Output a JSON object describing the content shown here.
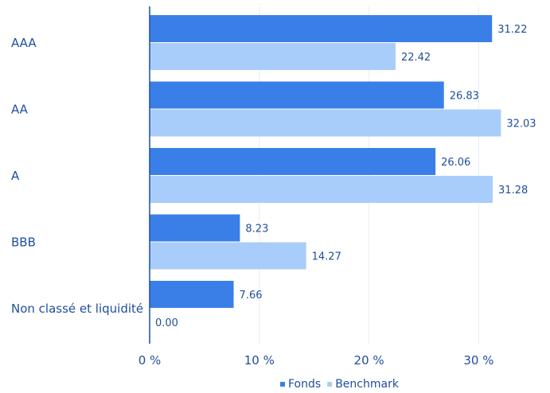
{
  "chart_data": {
    "type": "bar",
    "orientation": "horizontal",
    "categories": [
      "AAA",
      "AA",
      "A",
      "BBB",
      "Non classé et liquidité"
    ],
    "series": [
      {
        "name": "Fonds",
        "values": [
          31.22,
          26.83,
          26.06,
          8.23,
          7.66
        ],
        "labels": [
          "31.22",
          "26.83",
          "26.06",
          "8.23",
          "7.66"
        ],
        "color": "#3a7ee8"
      },
      {
        "name": "Benchmark",
        "values": [
          22.42,
          32.03,
          31.28,
          14.27,
          0.0
        ],
        "labels": [
          "22.42",
          "32.03",
          "31.28",
          "14.27",
          "0.00"
        ],
        "color": "#a9cdfa"
      }
    ],
    "xlim": [
      0,
      35
    ],
    "xticks": [
      0,
      10,
      20,
      30
    ],
    "xtick_labels": [
      "0 %",
      "10 %",
      "20 %",
      "30 %"
    ],
    "grid": true,
    "legend_position": "bottom-right",
    "axis_color": "#1f4e9c",
    "label_color": "#1f4e9c",
    "grid_color": "#e3eef9"
  }
}
